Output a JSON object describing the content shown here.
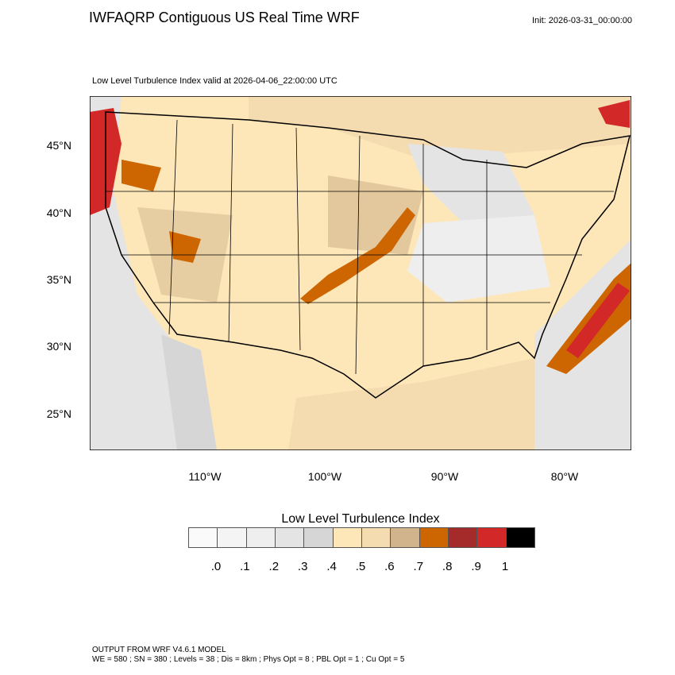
{
  "header": {
    "title": "IWFAQRP Contiguous US Real Time WRF",
    "init": "Init: 2026-03-31_00:00:00",
    "subtitle": "Low Level Turbulence Index valid at 2026-04-06_22:00:00 UTC"
  },
  "chart_data": {
    "type": "heatmap",
    "title": "Low Level Turbulence Index valid at 2026-04-06_22:00:00 UTC",
    "lat_ticks": [
      "45°N",
      "40°N",
      "35°N",
      "30°N",
      "25°N"
    ],
    "lon_ticks": [
      "110°W",
      "100°W",
      "90°W",
      "80°W"
    ],
    "colorbar": {
      "title": "Low Level Turbulence Index",
      "labels": [
        ".0",
        ".1",
        ".2",
        ".3",
        ".4",
        ".5",
        ".6",
        ".7",
        ".8",
        ".9",
        "1"
      ],
      "colors": [
        "#fafafa",
        "#f4f4f4",
        "#eeeeee",
        "#e4e4e4",
        "#d6d6d6",
        "#fde6b8",
        "#f4dbb0",
        "#d2b48c",
        "#cd6600",
        "#a52a2a",
        "#d22828",
        "#000000"
      ]
    }
  },
  "footer": {
    "line1": "OUTPUT FROM WRF V4.6.1 MODEL",
    "line2": "WE = 580 ; SN = 380 ; Levels = 38 ; Dis = 8km ; Phys Opt = 8 ; PBL Opt = 1 ; Cu Opt = 5"
  }
}
